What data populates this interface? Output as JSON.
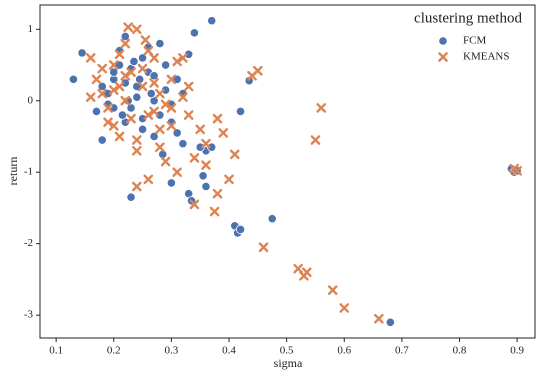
{
  "chart_data": {
    "type": "scatter",
    "xlabel": "sigma",
    "ylabel": "return",
    "legend_title": "clustering method",
    "legend": "upper right",
    "xlim": [
      0.072,
      0.931
    ],
    "ylim": [
      -3.32,
      1.34
    ],
    "xticks": [
      0.1,
      0.2,
      0.3,
      0.4,
      0.5,
      0.6,
      0.7,
      0.8,
      0.9
    ],
    "yticks": [
      -3,
      -2,
      -1,
      0,
      1
    ],
    "grid": false,
    "series": [
      {
        "name": "FCM",
        "color": "#4c72b0",
        "marker": "o",
        "x": [
          0.13,
          0.145,
          0.18,
          0.23,
          0.37,
          0.33,
          0.335,
          0.355,
          0.36,
          0.41,
          0.415,
          0.42,
          0.475,
          0.42,
          0.435,
          0.68,
          0.89,
          0.895,
          0.9,
          0.34,
          0.3,
          0.285,
          0.36,
          0.37,
          0.35,
          0.22,
          0.21,
          0.2,
          0.19,
          0.25,
          0.26,
          0.24,
          0.27,
          0.28,
          0.29,
          0.31,
          0.32,
          0.23,
          0.22,
          0.2,
          0.18,
          0.17,
          0.25,
          0.27,
          0.3,
          0.21,
          0.23,
          0.26,
          0.28,
          0.32,
          0.24,
          0.29,
          0.2,
          0.22,
          0.27,
          0.19,
          0.25,
          0.31,
          0.33,
          0.235,
          0.265,
          0.215,
          0.245,
          0.3,
          0.225
        ],
        "values": [
          0.3,
          0.67,
          -0.55,
          -1.35,
          1.12,
          -1.3,
          -1.4,
          -1.05,
          -1.2,
          -1.75,
          -1.85,
          -1.8,
          -1.65,
          -0.15,
          0.28,
          -3.1,
          -0.95,
          -1.0,
          -0.98,
          0.95,
          -1.15,
          -0.75,
          -0.7,
          -0.65,
          -0.65,
          0.9,
          0.5,
          0.3,
          0.1,
          0.6,
          0.4,
          0.2,
          0.0,
          -0.2,
          0.5,
          0.3,
          0.1,
          -0.1,
          -0.3,
          -0.1,
          0.2,
          -0.15,
          -0.4,
          -0.5,
          -0.3,
          0.7,
          0.45,
          0.75,
          0.8,
          -0.6,
          0.05,
          0.15,
          0.4,
          0.25,
          0.35,
          -0.05,
          -0.25,
          -0.45,
          0.65,
          0.55,
          0.1,
          -0.2,
          0.3,
          -0.05,
          0.0
        ]
      },
      {
        "name": "KMEANS",
        "color": "#dd8452",
        "marker": "x",
        "x": [
          0.16,
          0.225,
          0.24,
          0.255,
          0.32,
          0.44,
          0.45,
          0.56,
          0.55,
          0.46,
          0.52,
          0.53,
          0.535,
          0.58,
          0.6,
          0.66,
          0.895,
          0.9,
          0.375,
          0.4,
          0.41,
          0.39,
          0.38,
          0.34,
          0.24,
          0.26,
          0.29,
          0.31,
          0.17,
          0.18,
          0.19,
          0.2,
          0.21,
          0.22,
          0.23,
          0.25,
          0.27,
          0.28,
          0.3,
          0.33,
          0.35,
          0.36,
          0.19,
          0.21,
          0.24,
          0.26,
          0.28,
          0.3,
          0.32,
          0.2,
          0.22,
          0.25,
          0.27,
          0.29,
          0.31,
          0.34,
          0.23,
          0.18,
          0.16,
          0.2,
          0.26,
          0.36,
          0.38,
          0.22,
          0.24,
          0.28,
          0.3,
          0.33,
          0.21,
          0.27
        ],
        "values": [
          0.6,
          1.03,
          1.0,
          0.85,
          0.6,
          0.35,
          0.42,
          -0.1,
          -0.55,
          -2.05,
          -2.35,
          -2.45,
          -2.4,
          -2.65,
          -2.9,
          -3.05,
          -0.95,
          -0.98,
          -1.55,
          -1.1,
          -0.75,
          -0.45,
          -0.25,
          -1.45,
          -1.2,
          -1.1,
          -0.85,
          -1.0,
          0.3,
          0.1,
          -0.1,
          0.5,
          0.2,
          0.0,
          0.4,
          0.2,
          0.6,
          0.1,
          0.3,
          -0.2,
          -0.4,
          -0.6,
          -0.3,
          -0.5,
          -0.7,
          -0.2,
          -0.4,
          -0.1,
          0.05,
          0.15,
          0.35,
          0.45,
          0.25,
          -0.05,
          0.55,
          -0.8,
          -0.25,
          0.45,
          0.05,
          -0.35,
          0.7,
          -0.9,
          -1.3,
          0.8,
          -0.55,
          -0.65,
          -0.35,
          0.2,
          0.65,
          -0.15
        ]
      }
    ]
  }
}
